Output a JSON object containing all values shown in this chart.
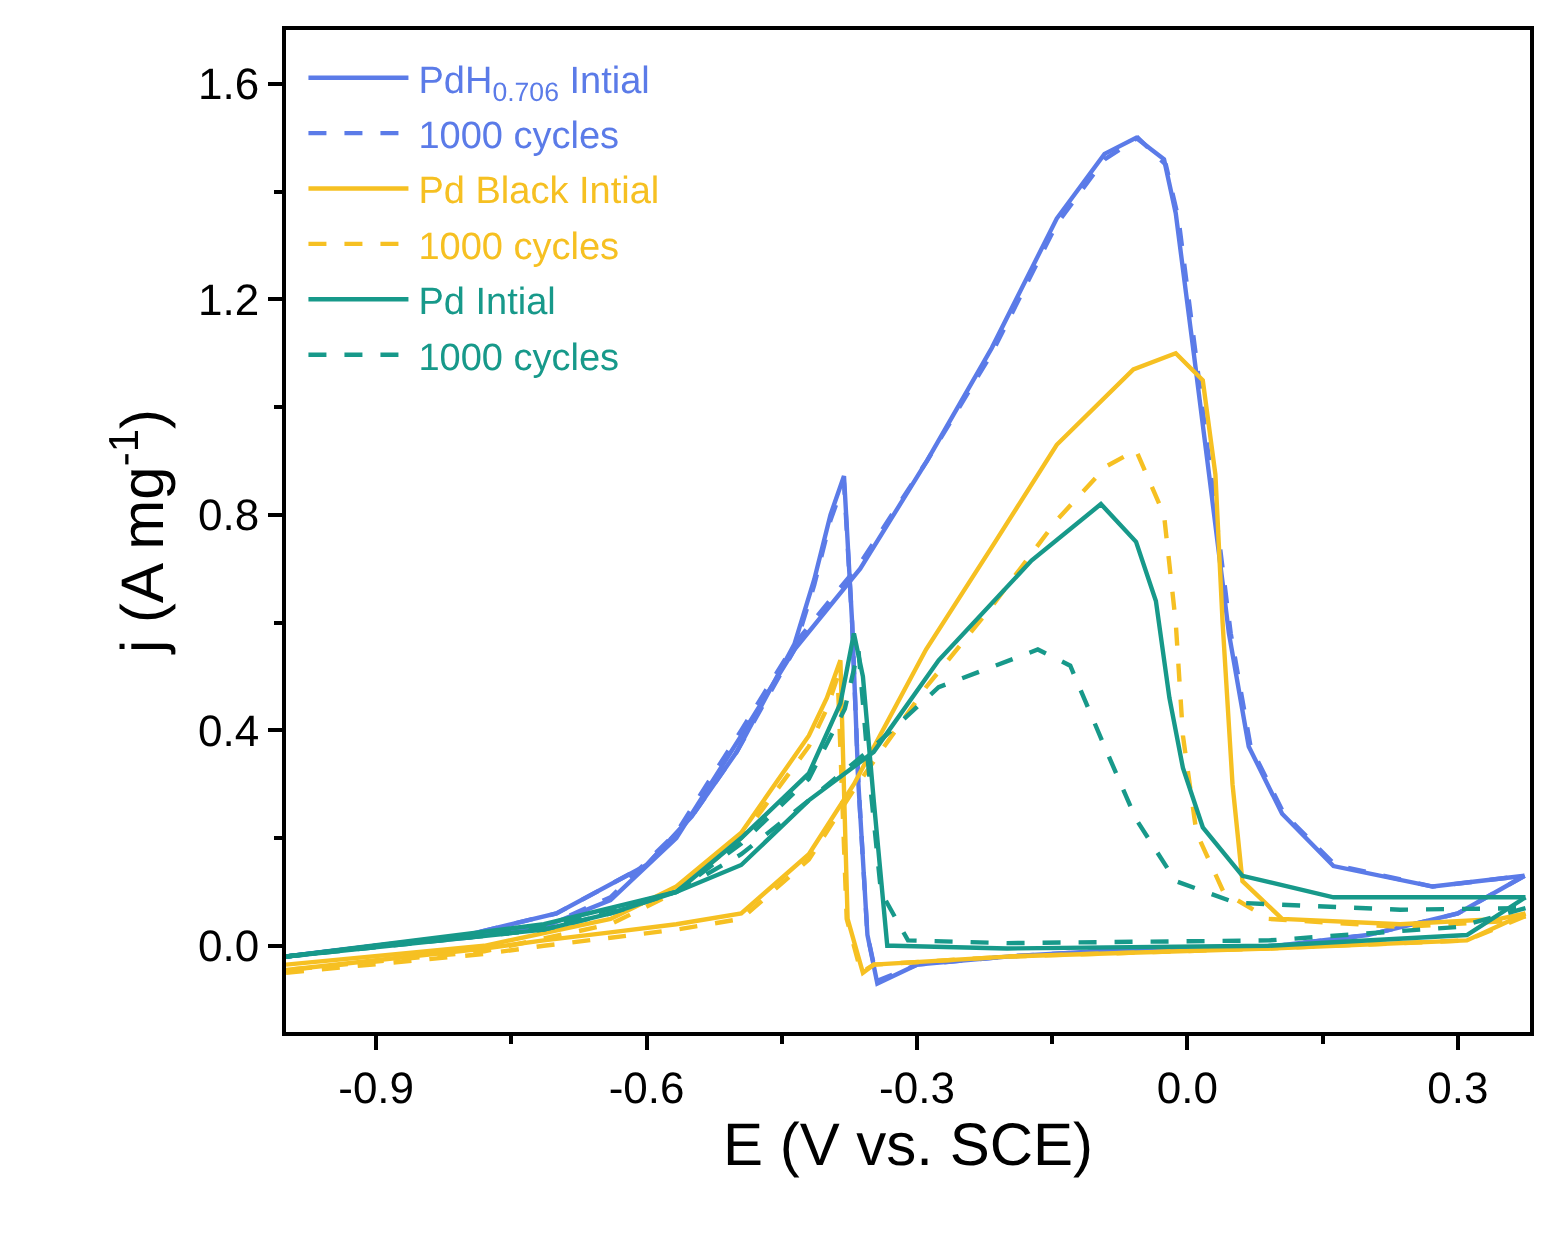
{
  "chart_data": {
    "type": "line",
    "xlabel": "E (V vs. SCE)",
    "ylabel": "j (A mg$^{-1}$)",
    "xlim": [
      -1.0,
      0.38
    ],
    "ylim": [
      -0.16,
      1.7
    ],
    "xticks": [
      -0.9,
      {
        "value": -0.75,
        "label": null
      },
      -0.6,
      {
        "value": -0.45,
        "label": null
      },
      -0.3,
      {
        "value": -0.15,
        "label": null
      },
      {
        "value": 0,
        "label": "0.0"
      },
      {
        "value": 0.15,
        "label": null
      },
      0.3
    ],
    "yticks": [
      {
        "value": 0,
        "label": "0.0"
      },
      {
        "value": 0.2,
        "label": null
      },
      0.4,
      {
        "value": 0.6,
        "label": null
      },
      0.8,
      {
        "value": 1.0,
        "label": null
      },
      1.2,
      {
        "value": 1.4,
        "label": null
      },
      1.6
    ],
    "legend": "top left",
    "marker": "none",
    "series": [
      {
        "name": "PdH$_{0.706}$ Intial",
        "color": "#5b7be8",
        "line_style": "solid",
        "x": [
          -1.0,
          -0.9,
          -0.8,
          -0.714,
          -0.64,
          -0.567,
          -0.495,
          -0.436,
          -0.363,
          -0.289,
          -0.217,
          -0.145,
          -0.092,
          -0.057,
          -0.026,
          -0.013,
          0.007,
          0.024,
          0.046,
          0.068,
          0.105,
          0.162,
          0.272,
          0.374
        ],
        "values": [
          -0.02,
          0.0,
          0.015,
          0.035,
          0.085,
          0.2,
          0.39,
          0.55,
          0.7,
          0.9,
          1.11,
          1.35,
          1.47,
          1.5,
          1.46,
          1.36,
          1.1,
          0.875,
          0.58,
          0.37,
          0.245,
          0.148,
          0.11,
          0.13
        ]
      },
      {
        "color": "#5b7be8",
        "line_style": "solid",
        "x": [
          0.374,
          0.3,
          0.2,
          0.1,
          0.0,
          -0.1,
          -0.2,
          -0.3,
          -0.344,
          -0.355,
          -0.365,
          -0.372,
          -0.381,
          -0.396,
          -0.414,
          -0.436,
          -0.5,
          -0.55,
          -0.6,
          -0.7,
          -0.8,
          -0.9,
          -1.0
        ],
        "values": [
          0.13,
          0.06,
          0.02,
          0.0,
          -0.005,
          -0.01,
          -0.02,
          -0.035,
          -0.07,
          0.02,
          0.3,
          0.6,
          0.872,
          0.8,
          0.68,
          0.56,
          0.36,
          0.24,
          0.15,
          0.06,
          0.02,
          0.0,
          -0.02
        ]
      },
      {
        "name": "1000 cycles",
        "color": "#5b7be8",
        "line_style": "dashed",
        "x": [
          -1.0,
          -0.9,
          -0.8,
          -0.714,
          -0.64,
          -0.567,
          -0.495,
          -0.436,
          -0.363,
          -0.289,
          -0.217,
          -0.145,
          -0.092,
          -0.055,
          -0.024,
          -0.01,
          0.009,
          0.026,
          0.048,
          0.07,
          0.107,
          0.164,
          0.272,
          0.374
        ],
        "values": [
          -0.02,
          0.0,
          0.015,
          0.035,
          0.09,
          0.21,
          0.4,
          0.56,
          0.71,
          0.9,
          1.1,
          1.34,
          1.46,
          1.5,
          1.45,
          1.35,
          1.1,
          0.875,
          0.58,
          0.37,
          0.245,
          0.15,
          0.11,
          0.13
        ]
      },
      {
        "color": "#5b7be8",
        "line_style": "dashed",
        "x": [
          0.374,
          0.3,
          0.2,
          0.1,
          0.0,
          -0.1,
          -0.2,
          -0.3,
          -0.344,
          -0.355,
          -0.365,
          -0.372,
          -0.381,
          -0.396,
          -0.414,
          -0.436,
          -0.5,
          -0.55,
          -0.6,
          -0.7,
          -0.8,
          -0.9,
          -1.0
        ],
        "values": [
          0.13,
          0.06,
          0.02,
          0.0,
          -0.005,
          -0.01,
          -0.02,
          -0.035,
          -0.065,
          0.02,
          0.3,
          0.6,
          0.86,
          0.79,
          0.67,
          0.55,
          0.36,
          0.24,
          0.15,
          0.06,
          0.02,
          0.0,
          -0.02
        ]
      },
      {
        "name": "Pd Black Intial",
        "color": "#f6c022",
        "line_style": "solid",
        "x": [
          -1.0,
          -0.78,
          -0.714,
          -0.64,
          -0.567,
          -0.495,
          -0.42,
          -0.37,
          -0.29,
          -0.217,
          -0.145,
          -0.06,
          -0.013,
          0.017,
          0.031,
          0.039,
          0.05,
          0.061,
          0.105,
          0.236,
          0.346,
          0.375
        ],
        "values": [
          -0.045,
          -0.005,
          0.01,
          0.025,
          0.04,
          0.06,
          0.17,
          0.3,
          0.55,
          0.74,
          0.93,
          1.07,
          1.1,
          1.05,
          0.875,
          0.6,
          0.3,
          0.12,
          0.05,
          0.04,
          0.05,
          0.06
        ]
      },
      {
        "color": "#f6c022",
        "line_style": "solid",
        "x": [
          0.375,
          0.31,
          0.09,
          -0.2,
          -0.348,
          -0.36,
          -0.377,
          -0.385,
          -0.4,
          -0.42,
          -0.495,
          -0.567,
          -0.64,
          -0.78,
          -1.0
        ],
        "values": [
          0.06,
          0.01,
          -0.005,
          -0.02,
          -0.035,
          -0.05,
          0.05,
          0.53,
          0.46,
          0.39,
          0.21,
          0.11,
          0.05,
          0.0,
          -0.035
        ]
      },
      {
        "name": "1000 cycles",
        "color": "#f6c022",
        "line_style": "dashed",
        "x": [
          -1.0,
          -0.78,
          -0.714,
          -0.64,
          -0.567,
          -0.495,
          -0.42,
          -0.37,
          -0.29,
          -0.217,
          -0.145,
          -0.09,
          -0.057,
          -0.026,
          -0.013,
          -0.005,
          0.01,
          0.04,
          0.09,
          0.236,
          0.346,
          0.375
        ],
        "values": [
          -0.05,
          -0.015,
          0.0,
          0.015,
          0.03,
          0.05,
          0.16,
          0.29,
          0.48,
          0.63,
          0.79,
          0.89,
          0.92,
          0.8,
          0.6,
          0.39,
          0.21,
          0.1,
          0.05,
          0.035,
          0.045,
          0.055
        ]
      },
      {
        "color": "#f6c022",
        "line_style": "dashed",
        "x": [
          0.375,
          0.31,
          0.09,
          -0.2,
          -0.348,
          -0.362,
          -0.378,
          -0.388,
          -0.4,
          -0.42,
          -0.495,
          -0.567,
          -0.64,
          -0.78,
          -1.0
        ],
        "values": [
          0.055,
          0.01,
          -0.005,
          -0.02,
          -0.035,
          -0.05,
          0.05,
          0.5,
          0.44,
          0.37,
          0.2,
          0.1,
          0.04,
          -0.01,
          -0.045
        ]
      },
      {
        "name": "Pd Intial",
        "color": "#17998a",
        "line_style": "solid",
        "x": [
          -1.0,
          -0.714,
          -0.64,
          -0.567,
          -0.495,
          -0.42,
          -0.348,
          -0.276,
          -0.173,
          -0.096,
          -0.057,
          -0.035,
          -0.02,
          -0.005,
          0.017,
          0.061,
          0.162,
          0.375
        ],
        "values": [
          -0.02,
          0.03,
          0.06,
          0.1,
          0.15,
          0.27,
          0.36,
          0.53,
          0.715,
          0.82,
          0.75,
          0.64,
          0.46,
          0.33,
          0.22,
          0.13,
          0.09,
          0.09
        ]
      },
      {
        "color": "#17998a",
        "line_style": "solid",
        "x": [
          0.375,
          0.31,
          0.09,
          -0.2,
          -0.326,
          -0.333,
          -0.348,
          -0.36,
          -0.37,
          -0.385,
          -0.42,
          -0.495,
          -0.567,
          -0.714,
          -1.0
        ],
        "values": [
          0.09,
          0.02,
          0.0,
          -0.005,
          0.0,
          0.0,
          0.27,
          0.5,
          0.58,
          0.45,
          0.32,
          0.2,
          0.1,
          0.04,
          -0.02
        ]
      },
      {
        "name": "1000 cycles",
        "color": "#17998a",
        "line_style": "dashed",
        "x": [
          -1.0,
          -0.714,
          -0.64,
          -0.567,
          -0.495,
          -0.42,
          -0.348,
          -0.276,
          -0.166,
          -0.13,
          -0.092,
          -0.057,
          -0.013,
          0.053,
          0.236,
          0.375
        ],
        "values": [
          -0.02,
          0.03,
          0.06,
          0.1,
          0.17,
          0.27,
          0.37,
          0.48,
          0.55,
          0.52,
          0.37,
          0.235,
          0.12,
          0.08,
          0.067,
          0.07
        ]
      },
      {
        "color": "#17998a",
        "line_style": "dashed",
        "x": [
          0.375,
          0.3,
          0.09,
          -0.2,
          -0.31,
          -0.32,
          -0.34,
          -0.355,
          -0.365,
          -0.38,
          -0.42,
          -0.495,
          -0.567,
          -0.714,
          -1.0
        ],
        "values": [
          0.07,
          0.035,
          0.01,
          0.005,
          0.01,
          0.04,
          0.1,
          0.35,
          0.55,
          0.44,
          0.31,
          0.19,
          0.1,
          0.035,
          -0.02
        ]
      }
    ]
  }
}
